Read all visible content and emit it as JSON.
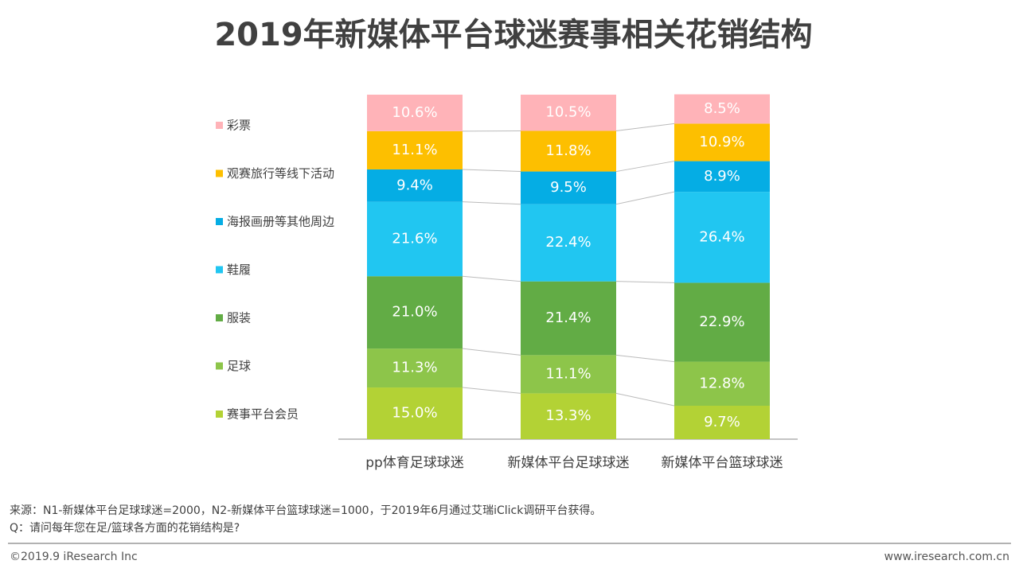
{
  "chart_data": {
    "type": "stacked_bar",
    "title": "2019年新媒体平台球迷赛事相关花销结构",
    "categories": [
      "pp体育足球球迷",
      "新媒体平台足球球迷",
      "新媒体平台篮球球迷"
    ],
    "ylim": [
      0,
      100
    ],
    "series": [
      {
        "name": "赛事平台会员",
        "color": "#b3d235",
        "values": [
          15.0,
          13.3,
          9.7
        ],
        "value_labels": [
          "15.0%",
          "13.3%",
          "9.7%"
        ]
      },
      {
        "name": "足球",
        "color": "#8dc54a",
        "values": [
          11.3,
          11.1,
          12.8
        ],
        "value_labels": [
          "11.3%",
          "11.1%",
          "12.8%"
        ]
      },
      {
        "name": "服装",
        "color": "#62ac45",
        "values": [
          21.0,
          21.4,
          22.9
        ],
        "value_labels": [
          "21.0%",
          "21.4%",
          "22.9%"
        ]
      },
      {
        "name": "鞋履",
        "color": "#21c6f1",
        "values": [
          21.6,
          22.4,
          26.4
        ],
        "value_labels": [
          "21.6%",
          "22.4%",
          "26.4%"
        ]
      },
      {
        "name": "海报画册等其他周边",
        "color": "#05ade4",
        "values": [
          9.4,
          9.5,
          8.9
        ],
        "value_labels": [
          "9.4%",
          "9.5%",
          "8.9%"
        ]
      },
      {
        "name": "观赛旅行等线下活动",
        "color": "#fdbf00",
        "values": [
          11.1,
          11.8,
          10.9
        ],
        "value_labels": [
          "11.1%",
          "11.8%",
          "10.9%"
        ]
      },
      {
        "name": "彩票",
        "color": "#ffb3b8",
        "values": [
          10.6,
          10.5,
          8.5
        ],
        "value_labels": [
          "10.6%",
          "10.5%",
          "8.5%"
        ]
      }
    ],
    "source_note": "来源：N1-新媒体平台足球球迷=2000，N2-新媒体平台篮球球迷=1000，于2019年6月通过艾瑞iClick调研平台获得。",
    "question_note": "Q：请问每年您在足/篮球各方面的花销结构是?",
    "copyright": "©2019.9 iResearch Inc",
    "website": "www.iresearch.com.cn"
  }
}
